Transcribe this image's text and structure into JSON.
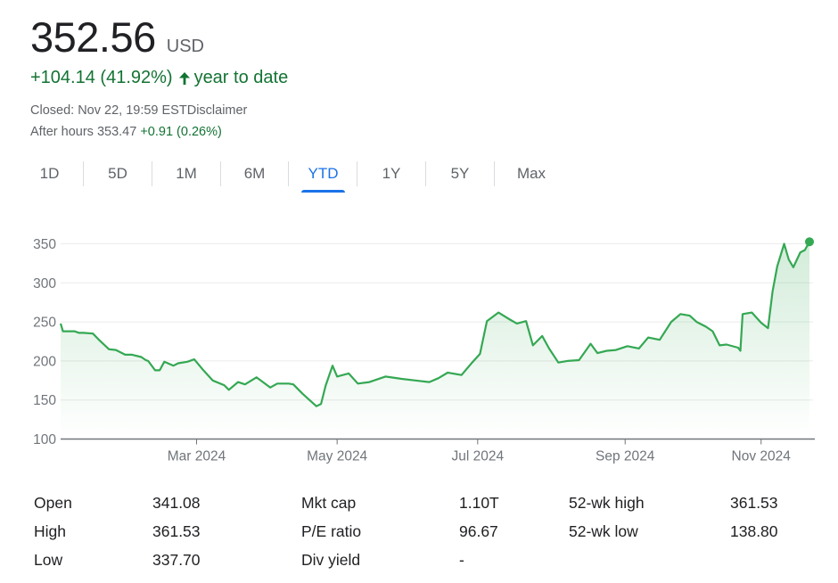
{
  "quote": {
    "price": "352.56",
    "currency": "USD",
    "change": "+104.14 (41.92%)",
    "change_period": "year to date",
    "closed_text": "Closed: Nov 22, 19:59 EST",
    "disclaimer": "Disclaimer",
    "after_hours_label": "After hours 353.47",
    "after_hours_change": "+0.91 (0.26%)",
    "positive_color": "#137333"
  },
  "tabs": [
    {
      "label": "1D",
      "active": false
    },
    {
      "label": "5D",
      "active": false
    },
    {
      "label": "1M",
      "active": false
    },
    {
      "label": "6M",
      "active": false
    },
    {
      "label": "YTD",
      "active": true
    },
    {
      "label": "1Y",
      "active": false
    },
    {
      "label": "5Y",
      "active": false
    },
    {
      "label": "Max",
      "active": false
    }
  ],
  "chart_data": {
    "type": "area",
    "x_start": "2024-01-02",
    "x_end": "2024-11-22",
    "x_ticks": [
      {
        "label": "Mar 2024",
        "date": "2024-03-01"
      },
      {
        "label": "May 2024",
        "date": "2024-05-01"
      },
      {
        "label": "Jul 2024",
        "date": "2024-07-01"
      },
      {
        "label": "Sep 2024",
        "date": "2024-09-03"
      },
      {
        "label": "Nov 2024",
        "date": "2024-11-01"
      }
    ],
    "y_ticks": [
      100,
      150,
      200,
      250,
      300,
      350
    ],
    "ylim": [
      100,
      350
    ],
    "grid": true,
    "line_color": "#34a853",
    "series": [
      {
        "points": [
          [
            "2024-01-02",
            248
          ],
          [
            "2024-01-03",
            238
          ],
          [
            "2024-01-08",
            238
          ],
          [
            "2024-01-10",
            236
          ],
          [
            "2024-01-12",
            236
          ],
          [
            "2024-01-16",
            235
          ],
          [
            "2024-01-19",
            226
          ],
          [
            "2024-01-23",
            215
          ],
          [
            "2024-01-26",
            214
          ],
          [
            "2024-01-30",
            208
          ],
          [
            "2024-02-02",
            208
          ],
          [
            "2024-02-06",
            205
          ],
          [
            "2024-02-08",
            201
          ],
          [
            "2024-02-09",
            200
          ],
          [
            "2024-02-12",
            188
          ],
          [
            "2024-02-14",
            188
          ],
          [
            "2024-02-16",
            199
          ],
          [
            "2024-02-20",
            194
          ],
          [
            "2024-02-22",
            197
          ],
          [
            "2024-02-26",
            199
          ],
          [
            "2024-02-29",
            202
          ],
          [
            "2024-03-04",
            188
          ],
          [
            "2024-03-08",
            175
          ],
          [
            "2024-03-13",
            169
          ],
          [
            "2024-03-15",
            163
          ],
          [
            "2024-03-19",
            173
          ],
          [
            "2024-03-22",
            170
          ],
          [
            "2024-03-27",
            179
          ],
          [
            "2024-04-02",
            166
          ],
          [
            "2024-04-05",
            171
          ],
          [
            "2024-04-10",
            171
          ],
          [
            "2024-04-12",
            170
          ],
          [
            "2024-04-16",
            158
          ],
          [
            "2024-04-19",
            150
          ],
          [
            "2024-04-22",
            142
          ],
          [
            "2024-04-24",
            145
          ],
          [
            "2024-04-26",
            168
          ],
          [
            "2024-04-29",
            194
          ],
          [
            "2024-05-01",
            180
          ],
          [
            "2024-05-06",
            184
          ],
          [
            "2024-05-10",
            171
          ],
          [
            "2024-05-15",
            173
          ],
          [
            "2024-05-22",
            180
          ],
          [
            "2024-05-29",
            177
          ],
          [
            "2024-06-04",
            175
          ],
          [
            "2024-06-10",
            173
          ],
          [
            "2024-06-14",
            178
          ],
          [
            "2024-06-18",
            185
          ],
          [
            "2024-06-24",
            182
          ],
          [
            "2024-06-28",
            196
          ],
          [
            "2024-07-02",
            209
          ],
          [
            "2024-07-05",
            251
          ],
          [
            "2024-07-10",
            262
          ],
          [
            "2024-07-15",
            253
          ],
          [
            "2024-07-18",
            248
          ],
          [
            "2024-07-22",
            251
          ],
          [
            "2024-07-25",
            220
          ],
          [
            "2024-07-29",
            232
          ],
          [
            "2024-08-01",
            216
          ],
          [
            "2024-08-05",
            198
          ],
          [
            "2024-08-09",
            200
          ],
          [
            "2024-08-14",
            201
          ],
          [
            "2024-08-19",
            222
          ],
          [
            "2024-08-22",
            210
          ],
          [
            "2024-08-26",
            213
          ],
          [
            "2024-08-30",
            214
          ],
          [
            "2024-09-04",
            219
          ],
          [
            "2024-09-09",
            216
          ],
          [
            "2024-09-13",
            230
          ],
          [
            "2024-09-18",
            227
          ],
          [
            "2024-09-23",
            250
          ],
          [
            "2024-09-27",
            260
          ],
          [
            "2024-10-01",
            258
          ],
          [
            "2024-10-04",
            250
          ],
          [
            "2024-10-08",
            244
          ],
          [
            "2024-10-11",
            238
          ],
          [
            "2024-10-14",
            220
          ],
          [
            "2024-10-17",
            221
          ],
          [
            "2024-10-22",
            217
          ],
          [
            "2024-10-23",
            213
          ],
          [
            "2024-10-24",
            260
          ],
          [
            "2024-10-28",
            262
          ],
          [
            "2024-11-01",
            249
          ],
          [
            "2024-11-04",
            242
          ],
          [
            "2024-11-06",
            289
          ],
          [
            "2024-11-08",
            321
          ],
          [
            "2024-11-11",
            350
          ],
          [
            "2024-11-13",
            330
          ],
          [
            "2024-11-15",
            320
          ],
          [
            "2024-11-18",
            339
          ],
          [
            "2024-11-20",
            342
          ],
          [
            "2024-11-22",
            352.56
          ]
        ]
      }
    ]
  },
  "stats": {
    "open": {
      "label": "Open",
      "value": "341.08"
    },
    "high": {
      "label": "High",
      "value": "361.53"
    },
    "low": {
      "label": "Low",
      "value": "337.70"
    },
    "mkt_cap": {
      "label": "Mkt cap",
      "value": "1.10T"
    },
    "pe_ratio": {
      "label": "P/E ratio",
      "value": "96.67"
    },
    "div_yield": {
      "label": "Div yield",
      "value": "-"
    },
    "wk52_high": {
      "label": "52-wk high",
      "value": "361.53"
    },
    "wk52_low": {
      "label": "52-wk low",
      "value": "138.80"
    }
  }
}
